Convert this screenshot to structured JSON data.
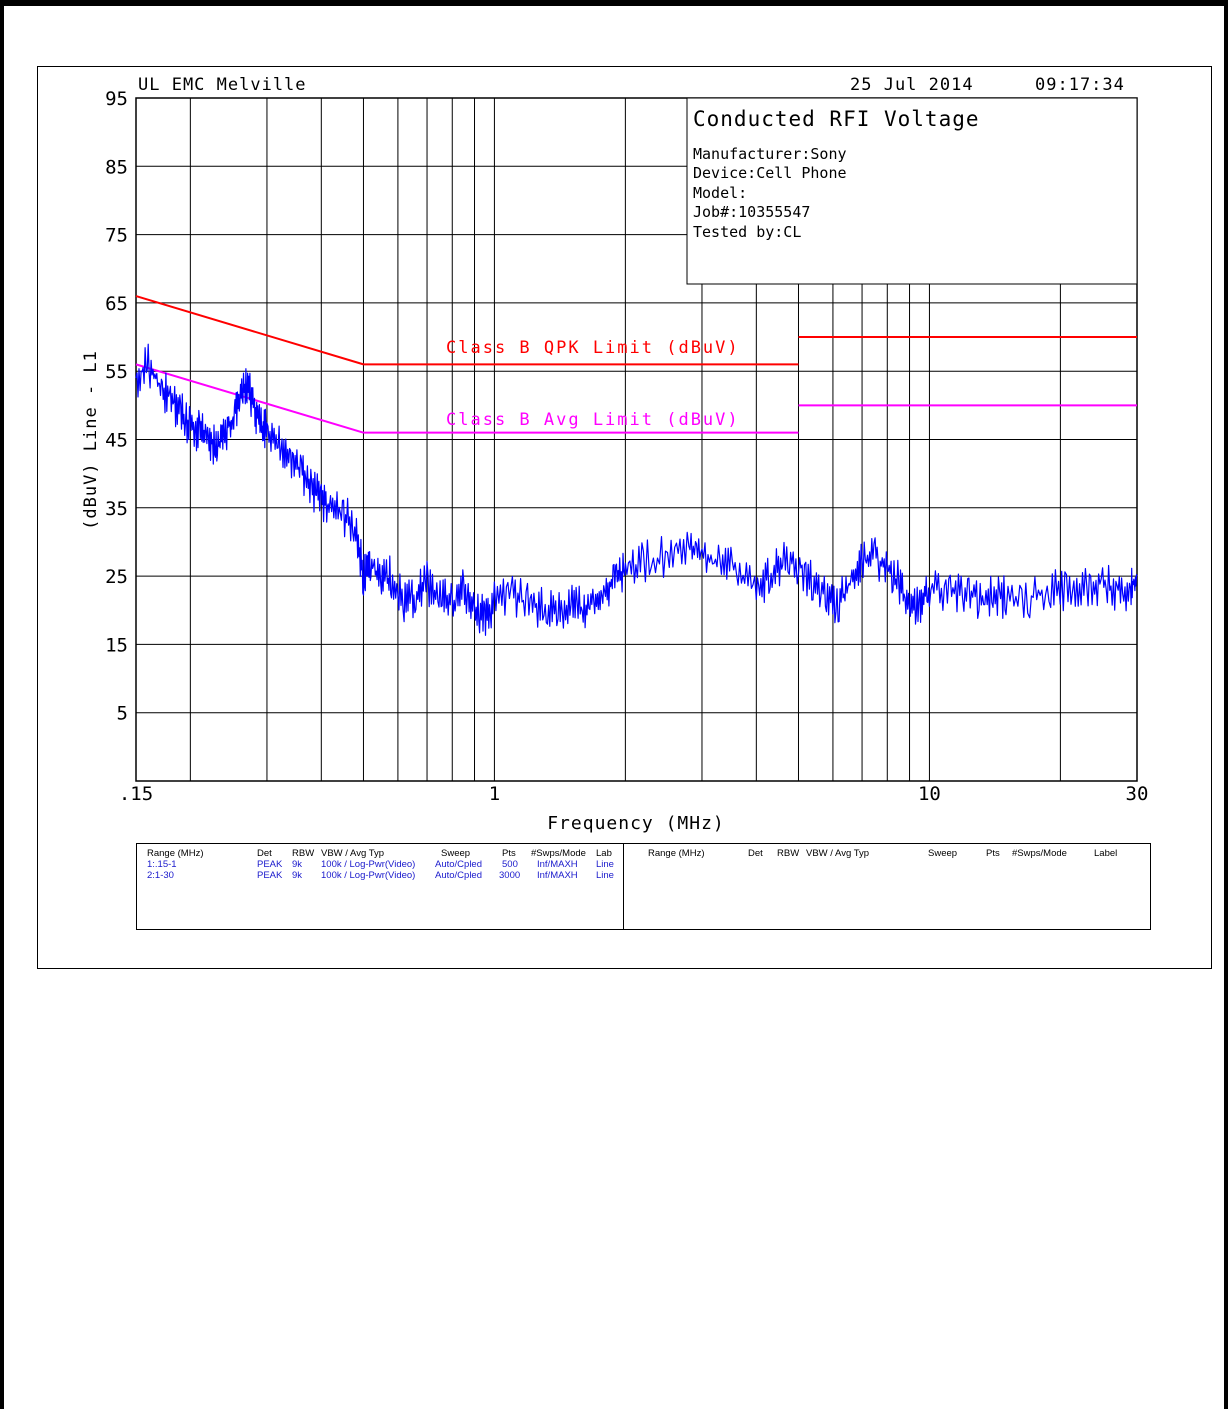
{
  "header": {
    "lab": "UL EMC Melville",
    "date": "25 Jul 2014",
    "time": "09:17:34"
  },
  "info_box": {
    "title": "Conducted RFI Voltage",
    "manufacturer": "Manufacturer:Sony",
    "device": "Device:Cell Phone",
    "model": "Model:",
    "job": "Job#:10355547",
    "tested_by": "Tested by:CL"
  },
  "colors": {
    "qpk_limit": "#ff0000",
    "avg_limit": "#ff00ff",
    "trace": "#0000ff",
    "grid": "#000000",
    "table_rows": "#1a1acc"
  },
  "chart_data": {
    "type": "line",
    "xscale": "log",
    "xlabel": "Frequency (MHz)",
    "ylabel": "(dBuV) Line - L1",
    "xlim": [
      0.15,
      30
    ],
    "ylim": [
      -5,
      95
    ],
    "y_ticks": [
      "95",
      "85",
      "75",
      "65",
      "55",
      "45",
      "35",
      "25",
      "15",
      "5"
    ],
    "x_tick_labels": [
      {
        "value": 0.15,
        "label": ".15"
      },
      {
        "value": 1,
        "label": "1"
      },
      {
        "value": 10,
        "label": "10"
      },
      {
        "value": 30,
        "label": "30"
      }
    ],
    "x_gridlines": [
      0.15,
      0.2,
      0.3,
      0.4,
      0.5,
      0.6,
      0.7,
      0.8,
      0.9,
      1,
      2,
      3,
      4,
      5,
      6,
      7,
      8,
      9,
      10,
      20,
      30
    ],
    "grid": true,
    "limit_lines": [
      {
        "name": "Class B QPK Limit (dBuV)",
        "color": "#ff0000",
        "segments": [
          [
            [
              0.15,
              66
            ],
            [
              0.5,
              56
            ]
          ],
          [
            [
              0.5,
              56
            ],
            [
              5,
              56
            ]
          ],
          [
            [
              5,
              60
            ],
            [
              30,
              60
            ]
          ]
        ]
      },
      {
        "name": "Class B Avg Limit (dBuV)",
        "color": "#ff00ff",
        "segments": [
          [
            [
              0.15,
              56
            ],
            [
              0.5,
              46
            ]
          ],
          [
            [
              0.5,
              46
            ],
            [
              5,
              46
            ]
          ],
          [
            [
              5,
              50
            ],
            [
              30,
              50
            ]
          ]
        ]
      }
    ],
    "series": [
      {
        "color": "#0000ff",
        "x": [
          0.15,
          0.16,
          0.17,
          0.18,
          0.19,
          0.2,
          0.21,
          0.22,
          0.23,
          0.24,
          0.25,
          0.26,
          0.27,
          0.28,
          0.29,
          0.3,
          0.32,
          0.34,
          0.36,
          0.38,
          0.4,
          0.42,
          0.45,
          0.48,
          0.5,
          0.52,
          0.55,
          0.58,
          0.62,
          0.66,
          0.7,
          0.75,
          0.8,
          0.85,
          0.9,
          0.95,
          1.0,
          1.1,
          1.2,
          1.3,
          1.4,
          1.5,
          1.6,
          1.7,
          1.8,
          1.9,
          2.0,
          2.2,
          2.5,
          2.8,
          3.0,
          3.3,
          3.6,
          4.0,
          4.3,
          4.6,
          5.0,
          5.4,
          5.8,
          6.2,
          6.6,
          7.0,
          7.5,
          8.0,
          8.5,
          9.0,
          9.5,
          10,
          11,
          12,
          13,
          14,
          15,
          17,
          19,
          21,
          23,
          25,
          27,
          29,
          30
        ],
        "y": [
          54,
          56,
          53,
          51,
          49,
          47,
          46,
          45,
          44,
          46,
          48,
          51,
          53,
          50,
          47,
          46,
          44,
          42,
          40,
          38,
          36,
          35,
          34,
          32,
          25,
          27,
          24,
          25,
          21,
          22,
          24,
          22,
          21,
          23,
          20,
          19,
          21,
          22,
          21,
          20,
          20,
          21,
          20,
          22,
          23,
          24,
          26,
          27,
          28,
          29,
          28,
          27,
          26,
          23,
          25,
          27,
          27,
          24,
          22,
          21,
          24,
          27,
          28,
          26,
          24,
          20,
          21,
          23,
          23,
          22,
          22,
          22,
          22,
          22,
          23,
          23,
          23,
          24,
          23,
          23,
          25
        ]
      }
    ]
  },
  "settings_table": {
    "left": {
      "headers": [
        "Range (MHz)",
        "Det",
        "RBW",
        "VBW / Avg Typ",
        "Sweep",
        "Pts",
        "#Swps/Mode",
        "Lab"
      ],
      "rows": [
        [
          "1:.15-1",
          "PEAK",
          "9k",
          "100k / Log-Pwr(Video)",
          "Auto/Cpled",
          "500",
          "Inf/MAXH",
          "Line"
        ],
        [
          "2:1-30",
          "PEAK",
          "9k",
          "100k / Log-Pwr(Video)",
          "Auto/Cpled",
          "3000",
          "Inf/MAXH",
          "Line"
        ]
      ]
    },
    "right": {
      "headers": [
        "Range (MHz)",
        "Det",
        "RBW",
        "VBW / Avg Typ",
        "Sweep",
        "Pts",
        "#Swps/Mode",
        "Label"
      ]
    }
  }
}
